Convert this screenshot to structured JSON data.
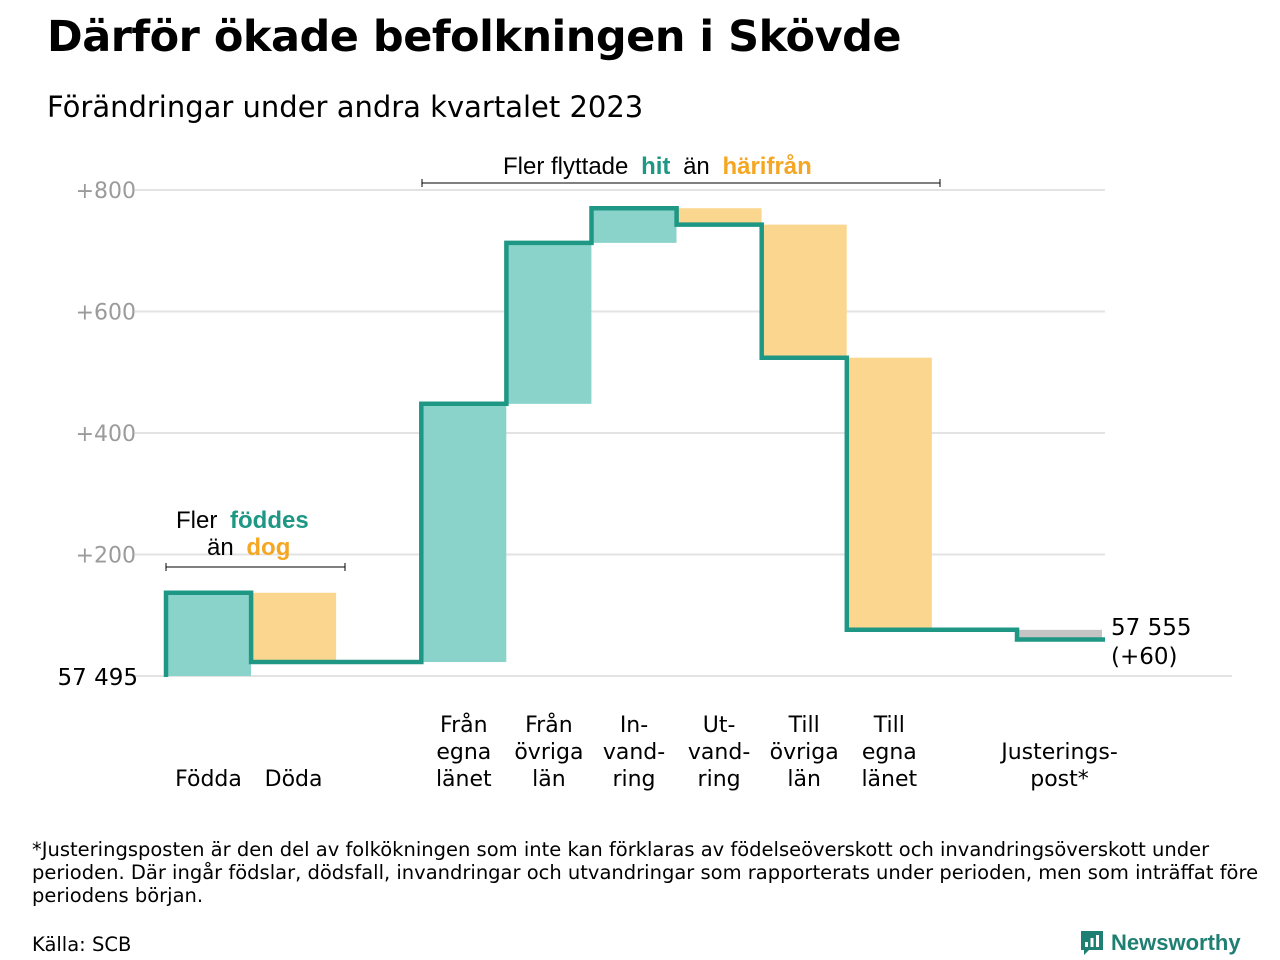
{
  "title": "Därför ökade befolkningen i Skövde",
  "subtitle": "Förändringar under andra kvartalet 2023",
  "colors": {
    "positive": "#8ad3cb",
    "negative": "#fbd68e",
    "adjustment": "#c4c4c4",
    "line": "#1e9784",
    "accent_teal": "#1e9784",
    "accent_orange": "#f5a623",
    "grid": "#e3e3e3",
    "tick_text": "#9b9b9b"
  },
  "annotations": {
    "migration": {
      "prefix": "Fler flyttade",
      "hit": "hit",
      "mid": "än",
      "harifran": "härifrån"
    },
    "births": {
      "prefix": "Fler",
      "foddes": "föddes",
      "an": "än",
      "dog": "dog"
    }
  },
  "chart_data": {
    "type": "waterfall",
    "start_label": "57  495",
    "end_label": [
      "57 555",
      "(+60)"
    ],
    "start_value": 0,
    "y_ticks": [
      {
        "value": 200,
        "label": "+200"
      },
      {
        "value": 400,
        "label": "+400"
      },
      {
        "value": 600,
        "label": "+600"
      },
      {
        "value": 800,
        "label": "+800"
      }
    ],
    "ylim": [
      0,
      800
    ],
    "steps": [
      {
        "label": [
          "Födda"
        ],
        "change": 137,
        "kind": "positive"
      },
      {
        "label": [
          "Döda"
        ],
        "change": -114,
        "kind": "negative"
      },
      {
        "label": [
          "Från",
          "egna",
          "länet"
        ],
        "change": 425,
        "kind": "positive"
      },
      {
        "label": [
          "Från",
          "övriga",
          "län"
        ],
        "change": 265,
        "kind": "positive"
      },
      {
        "label": [
          "In-",
          "vand-",
          "ring"
        ],
        "change": 57,
        "kind": "positive"
      },
      {
        "label": [
          "Ut-",
          "vand-",
          "ring"
        ],
        "change": -27,
        "kind": "negative"
      },
      {
        "label": [
          "Till",
          "övriga",
          "län"
        ],
        "change": -219,
        "kind": "negative"
      },
      {
        "label": [
          "Till",
          "egna",
          "länet"
        ],
        "change": -448,
        "kind": "negative"
      },
      {
        "label": [
          "Justerings-",
          "post*"
        ],
        "change": -16,
        "kind": "adjustment"
      }
    ]
  },
  "footnote": "*Justeringsposten är den del av folkökningen som inte kan förklaras av födelseöverskott och invandringsöverskott under perioden. Där ingår födslar, dödsfall, invandringar och utvandringar som rapporterats under perioden, men som inträffat före periodens början.",
  "source": "Källa: SCB",
  "brand": {
    "name": "Newsworthy",
    "icon": "newsworthy-logo-icon"
  }
}
